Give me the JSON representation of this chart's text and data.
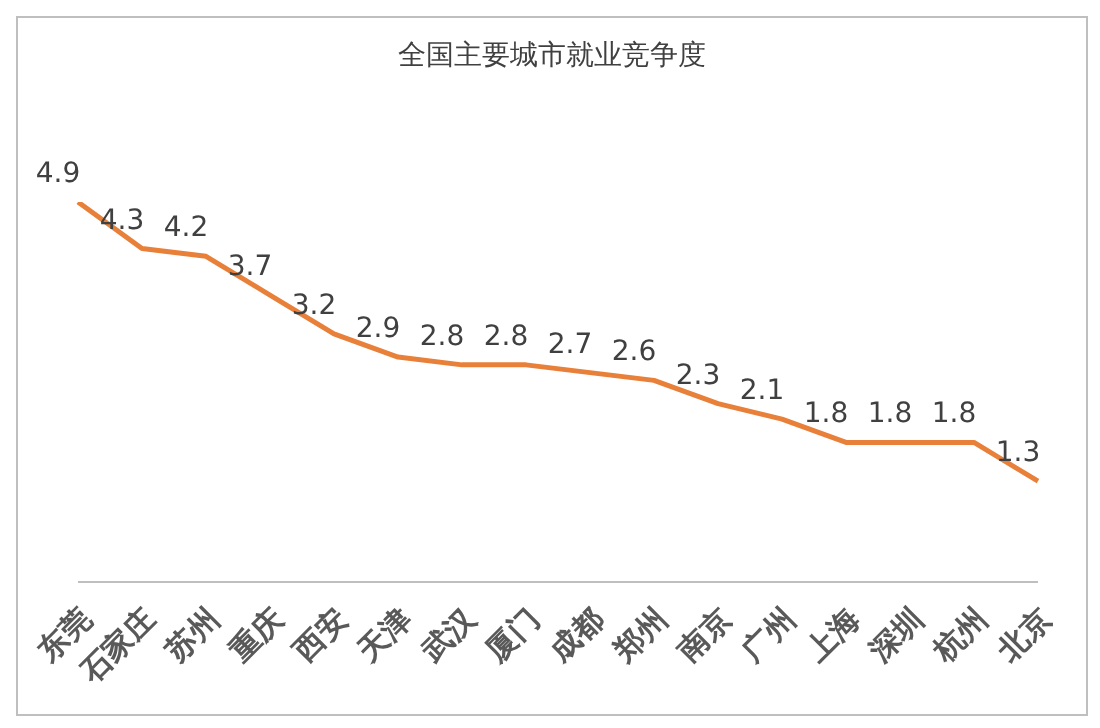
{
  "chart_data": {
    "type": "line",
    "title": "全国主要城市就业竞争度",
    "categories": [
      "东莞",
      "石家庄",
      "苏州",
      "重庆",
      "西安",
      "天津",
      "武汉",
      "厦门",
      "成都",
      "郑州",
      "南京",
      "广州",
      "上海",
      "深圳",
      "杭州",
      "北京"
    ],
    "values": [
      4.9,
      4.3,
      4.2,
      3.7,
      3.2,
      2.9,
      2.8,
      2.8,
      2.7,
      2.6,
      2.3,
      2.1,
      1.8,
      1.8,
      1.8,
      1.3
    ],
    "color": "#e8803a",
    "tick_labels": "x",
    "data_labels": true,
    "marker": "none",
    "line_style": "solid"
  }
}
